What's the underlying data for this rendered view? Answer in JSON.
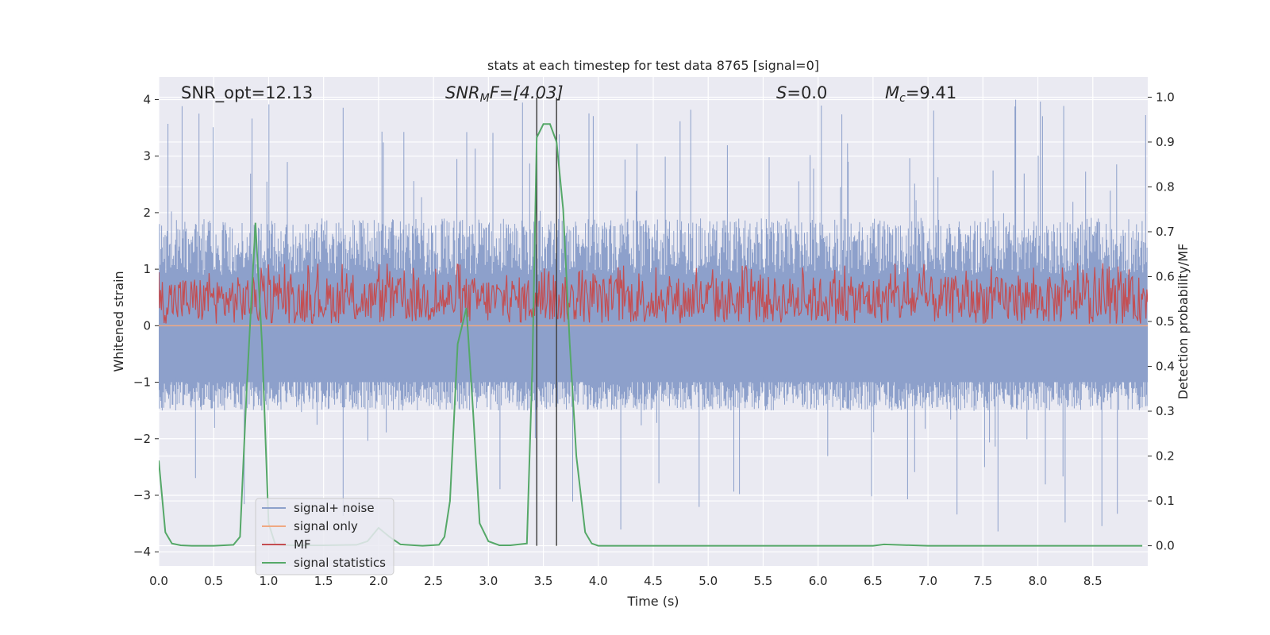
{
  "chart_data": {
    "type": "line",
    "title": "stats at each timestep for test data 8765 [signal=0]",
    "xlabel": "Time (s)",
    "ylabel_left": "Whitened strain",
    "ylabel_right": "Detection probability/MF",
    "xlim": [
      0,
      9.0
    ],
    "ylim_left": [
      -4.25,
      4.4
    ],
    "ylim_right": [
      -0.045,
      1.045
    ],
    "xticks": [
      0.0,
      0.5,
      1.0,
      1.5,
      2.0,
      2.5,
      3.0,
      3.5,
      4.0,
      4.5,
      5.0,
      5.5,
      6.0,
      6.5,
      7.0,
      7.5,
      8.0,
      8.5
    ],
    "xtick_labels": [
      "0.0",
      "0.5",
      "1.0",
      "1.5",
      "2.0",
      "2.5",
      "3.0",
      "3.5",
      "4.0",
      "4.5",
      "5.0",
      "5.5",
      "6.0",
      "6.5",
      "7.0",
      "7.5",
      "8.0",
      "8.5"
    ],
    "yticks_left": [
      4,
      3,
      2,
      1,
      0,
      -1,
      -2,
      -3,
      -4
    ],
    "ytick_labels_left": [
      "4",
      "3",
      "2",
      "1",
      "0",
      "−1",
      "−2",
      "−3",
      "−4"
    ],
    "yticks_right": [
      1.0,
      0.9,
      0.8,
      0.7,
      0.6,
      0.5,
      0.4,
      0.3,
      0.2,
      0.1,
      0.0
    ],
    "ytick_labels_right": [
      "1.0",
      "0.9",
      "0.8",
      "0.7",
      "0.6",
      "0.5",
      "0.4",
      "0.3",
      "0.2",
      "0.1",
      "0.0"
    ],
    "annotations": {
      "snr_opt": "SNR_opt=12.13",
      "snr_mf_main": "SNR",
      "snr_mf_sub": "M",
      "snr_mf_rest": "F=[4.03]",
      "s_main": "S",
      "s_rest": "=0.0",
      "mc_main": "M",
      "mc_sub": "c",
      "mc_rest": "=9.41"
    },
    "vlines": [
      3.44,
      3.62
    ],
    "series": [
      {
        "name": "signal+ noise",
        "axis": "left",
        "color": "#8da0cb",
        "envelope": {
          "upper_typical": 1.9,
          "upper_peak": 4.0,
          "lower_typical": -1.5,
          "lower_peak": -3.7
        }
      },
      {
        "name": "signal only",
        "axis": "left",
        "color": "#f0a882",
        "values_note": "flat at 0"
      },
      {
        "name": "MF",
        "axis": "right",
        "color": "#c44e52",
        "envelope": {
          "mean": 0.53,
          "upper": 0.6,
          "lower": 0.495
        }
      },
      {
        "name": "signal statistics",
        "axis": "right",
        "color": "#55a868",
        "x": [
          0.0,
          0.06,
          0.12,
          0.2,
          0.3,
          0.5,
          0.68,
          0.74,
          0.8,
          0.88,
          0.94,
          1.0,
          1.06,
          1.2,
          1.5,
          1.8,
          1.9,
          2.0,
          2.1,
          2.2,
          2.4,
          2.55,
          2.6,
          2.65,
          2.72,
          2.8,
          2.86,
          2.92,
          3.0,
          3.1,
          3.2,
          3.35,
          3.4,
          3.44,
          3.5,
          3.56,
          3.62,
          3.68,
          3.74,
          3.8,
          3.88,
          3.94,
          4.0,
          4.5,
          5.0,
          6.0,
          6.5,
          6.6,
          7.0,
          8.0,
          8.95
        ],
        "values": [
          0.19,
          0.03,
          0.005,
          0.001,
          0.0,
          0.0,
          0.002,
          0.02,
          0.35,
          0.72,
          0.45,
          0.05,
          0.003,
          0.001,
          0.001,
          0.002,
          0.01,
          0.04,
          0.02,
          0.003,
          0.0,
          0.002,
          0.02,
          0.1,
          0.45,
          0.53,
          0.3,
          0.05,
          0.01,
          0.001,
          0.001,
          0.005,
          0.4,
          0.91,
          0.94,
          0.94,
          0.9,
          0.75,
          0.45,
          0.2,
          0.03,
          0.005,
          0.0,
          0.0,
          0.0,
          0.0,
          0.0,
          0.003,
          0.0,
          0.0,
          0.0
        ]
      }
    ],
    "legend": {
      "placement": "lower-left",
      "entries": [
        "signal+ noise",
        "signal only",
        "MF",
        "signal statistics"
      ]
    },
    "grid": true
  },
  "colors": {
    "axes_bg": "#eaeaf2",
    "grid": "#ffffff",
    "noise": "#8da0cb",
    "signal_only": "#f0a882",
    "mf": "#c44e52",
    "stats": "#55a868",
    "vline": "#444444"
  }
}
